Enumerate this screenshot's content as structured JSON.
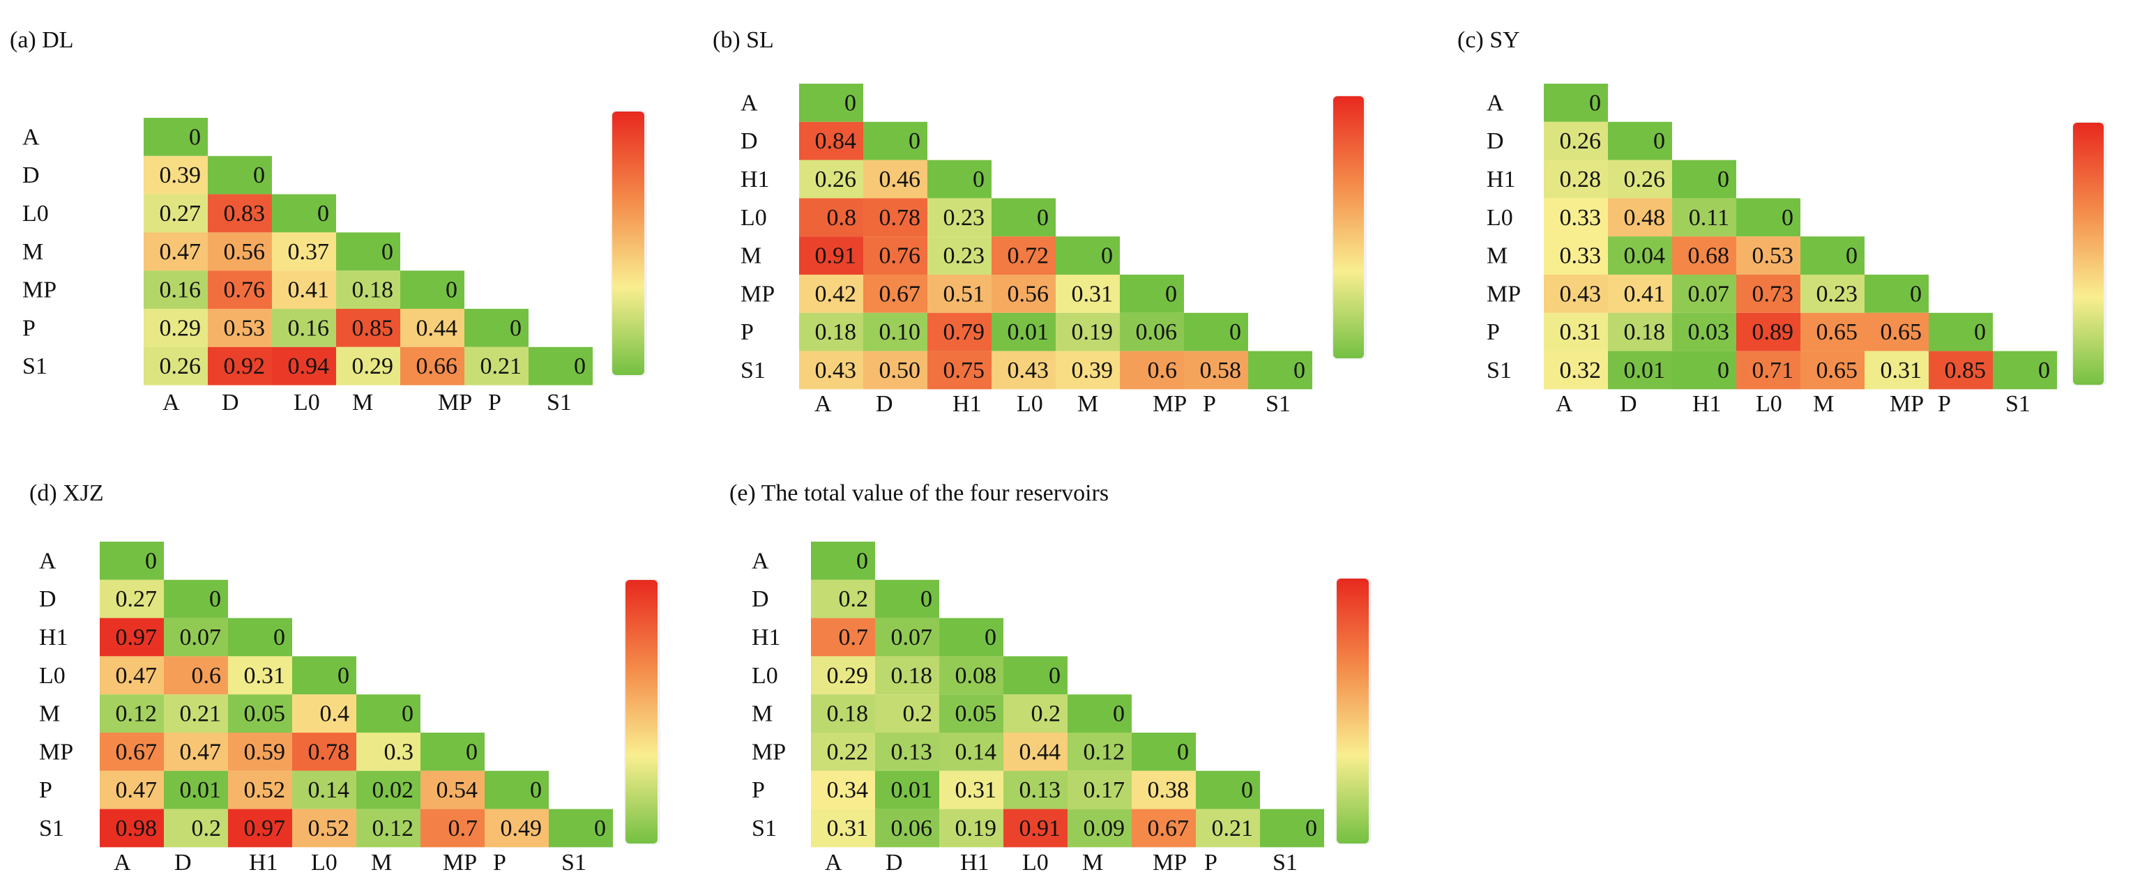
{
  "chart_data": [
    {
      "type": "heatmap",
      "title": "(a) DL",
      "labels": [
        "A",
        "D",
        "L0",
        "M",
        "MP",
        "P",
        "S1"
      ],
      "matrix": [
        [
          "0"
        ],
        [
          "0.39",
          "0"
        ],
        [
          "0.27",
          "0.83",
          "0"
        ],
        [
          "0.47",
          "0.56",
          "0.37",
          "0"
        ],
        [
          "0.16",
          "0.76",
          "0.41",
          "0.18",
          "0"
        ],
        [
          "0.29",
          "0.53",
          "0.16",
          "0.85",
          "0.44",
          "0"
        ],
        [
          "0.26",
          "0.92",
          "0.94",
          "0.29",
          "0.66",
          "0.21",
          "0"
        ]
      ],
      "value_range": [
        0,
        1
      ],
      "colorscale": [
        "#74c043",
        "#f9ee90",
        "#f48a4a",
        "#e8291f"
      ]
    },
    {
      "type": "heatmap",
      "title": "(b) SL",
      "labels": [
        "A",
        "D",
        "H1",
        "L0",
        "M",
        "MP",
        "P",
        "S1"
      ],
      "matrix": [
        [
          "0"
        ],
        [
          "0.84",
          "0"
        ],
        [
          "0.26",
          "0.46",
          "0"
        ],
        [
          "0.8",
          "0.78",
          "0.23",
          "0"
        ],
        [
          "0.91",
          "0.76",
          "0.23",
          "0.72",
          "0"
        ],
        [
          "0.42",
          "0.67",
          "0.51",
          "0.56",
          "0.31",
          "0"
        ],
        [
          "0.18",
          "0.10",
          "0.79",
          "0.01",
          "0.19",
          "0.06",
          "0"
        ],
        [
          "0.43",
          "0.50",
          "0.75",
          "0.43",
          "0.39",
          "0.6",
          "0.58",
          "0"
        ]
      ],
      "value_range": [
        0,
        1
      ],
      "colorscale": [
        "#74c043",
        "#f9ee90",
        "#f48a4a",
        "#e8291f"
      ]
    },
    {
      "type": "heatmap",
      "title": "(c) SY",
      "labels": [
        "A",
        "D",
        "H1",
        "L0",
        "M",
        "MP",
        "P",
        "S1"
      ],
      "matrix": [
        [
          "0"
        ],
        [
          "0.26",
          "0"
        ],
        [
          "0.28",
          "0.26",
          "0"
        ],
        [
          "0.33",
          "0.48",
          "0.11",
          "0"
        ],
        [
          "0.33",
          "0.04",
          "0.68",
          "0.53",
          "0"
        ],
        [
          "0.43",
          "0.41",
          "0.07",
          "0.73",
          "0.23",
          "0"
        ],
        [
          "0.31",
          "0.18",
          "0.03",
          "0.89",
          "0.65",
          "0.65",
          "0"
        ],
        [
          "0.32",
          "0.01",
          "0",
          "0.71",
          "0.65",
          "0.31",
          "0.85",
          "0"
        ]
      ],
      "value_range": [
        0,
        1
      ],
      "colorscale": [
        "#74c043",
        "#f9ee90",
        "#f48a4a",
        "#e8291f"
      ]
    },
    {
      "type": "heatmap",
      "title": "(d) XJZ",
      "labels": [
        "A",
        "D",
        "H1",
        "L0",
        "M",
        "MP",
        "P",
        "S1"
      ],
      "matrix": [
        [
          "0"
        ],
        [
          "0.27",
          "0"
        ],
        [
          "0.97",
          "0.07",
          "0"
        ],
        [
          "0.47",
          "0.6",
          "0.31",
          "0"
        ],
        [
          "0.12",
          "0.21",
          "0.05",
          "0.4",
          "0"
        ],
        [
          "0.67",
          "0.47",
          "0.59",
          "0.78",
          "0.3",
          "0"
        ],
        [
          "0.47",
          "0.01",
          "0.52",
          "0.14",
          "0.02",
          "0.54",
          "0"
        ],
        [
          "0.98",
          "0.2",
          "0.97",
          "0.52",
          "0.12",
          "0.7",
          "0.49",
          "0"
        ]
      ],
      "value_range": [
        0,
        1
      ],
      "colorscale": [
        "#74c043",
        "#f9ee90",
        "#f48a4a",
        "#e8291f"
      ]
    },
    {
      "type": "heatmap",
      "title": "(e) The total value of the four reservoirs",
      "labels": [
        "A",
        "D",
        "H1",
        "L0",
        "M",
        "MP",
        "P",
        "S1"
      ],
      "matrix": [
        [
          "0"
        ],
        [
          "0.2",
          "0"
        ],
        [
          "0.7",
          "0.07",
          "0"
        ],
        [
          "0.29",
          "0.18",
          "0.08",
          "0"
        ],
        [
          "0.18",
          "0.2",
          "0.05",
          "0.2",
          "0"
        ],
        [
          "0.22",
          "0.13",
          "0.14",
          "0.44",
          "0.12",
          "0"
        ],
        [
          "0.34",
          "0.01",
          "0.31",
          "0.13",
          "0.17",
          "0.38",
          "0"
        ],
        [
          "0.31",
          "0.06",
          "0.19",
          "0.91",
          "0.09",
          "0.67",
          "0.21",
          "0"
        ]
      ],
      "value_range": [
        0,
        1
      ],
      "colorscale": [
        "#74c043",
        "#f9ee90",
        "#f48a4a",
        "#e8291f"
      ]
    }
  ]
}
